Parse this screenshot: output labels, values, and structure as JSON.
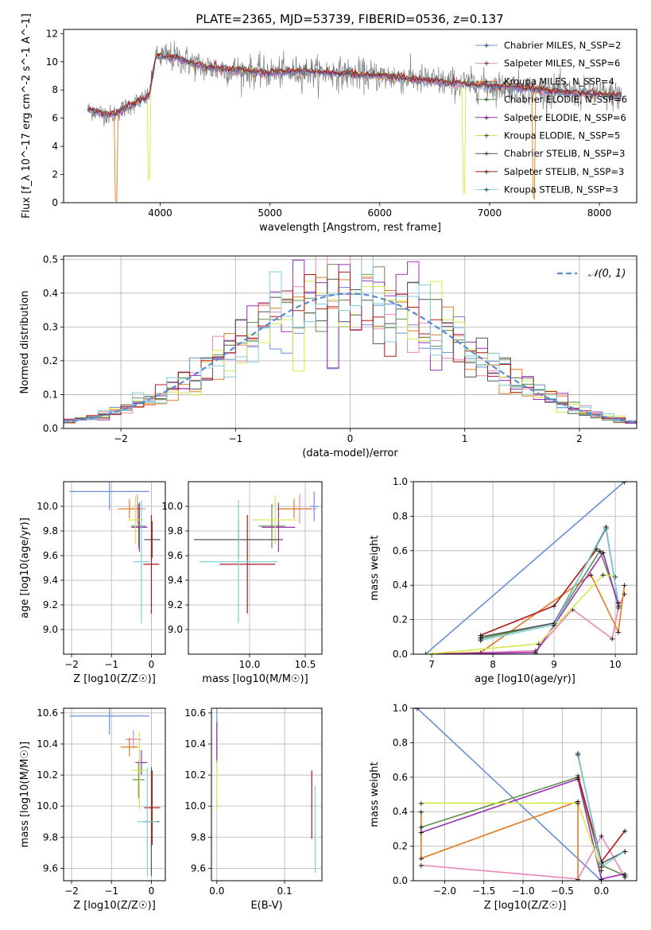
{
  "figure": {
    "title": "PLATE=2365, MJD=53739, FIBERID=0536, z=0.137"
  },
  "series": [
    {
      "name": "Chabrier MILES, N_SSP=2",
      "color": "#6a8fd8"
    },
    {
      "name": "Salpeter MILES, N_SSP=6",
      "color": "#e887b8"
    },
    {
      "name": "Kroupa MILES, N_SSP=4",
      "color": "#e07b20"
    },
    {
      "name": "Chabrier ELODIE, N_SSP=6",
      "color": "#5f8f4a"
    },
    {
      "name": "Salpeter ELODIE, N_SSP=6",
      "color": "#9b30b5"
    },
    {
      "name": "Kroupa ELODIE, N_SSP=5",
      "color": "#d4e84a"
    },
    {
      "name": "Chabrier STELIB, N_SSP=3",
      "color": "#555555"
    },
    {
      "name": "Salpeter STELIB, N_SSP=3",
      "color": "#b01818"
    },
    {
      "name": "Kroupa STELIB, N_SSP=3",
      "color": "#7fd0dc"
    }
  ],
  "chart_data": [
    {
      "id": "spectrum",
      "type": "line",
      "xlabel": "wavelength [Angstrom, rest frame]",
      "ylabel": "Flux [f_λ 10^-17 erg cm^-2 s^-1 A^-1]",
      "xlim": [
        3120,
        8340
      ],
      "ylim": [
        0,
        12.3
      ],
      "xticks": [
        4000,
        5000,
        6000,
        7000,
        8000
      ],
      "yticks": [
        0,
        2,
        4,
        6,
        8,
        10,
        12
      ],
      "grid": false,
      "legend": "top-right",
      "continuum": [
        [
          3340,
          6.6
        ],
        [
          3550,
          6.2
        ],
        [
          3700,
          6.8
        ],
        [
          3900,
          7.6
        ],
        [
          3960,
          10.4
        ],
        [
          4150,
          10.3
        ],
        [
          4400,
          9.6
        ],
        [
          4700,
          9.4
        ],
        [
          5000,
          9.2
        ],
        [
          5300,
          9.3
        ],
        [
          5600,
          9.2
        ],
        [
          6000,
          9.0
        ],
        [
          6400,
          8.7
        ],
        [
          6800,
          8.4
        ],
        [
          7200,
          8.2
        ],
        [
          7600,
          7.9
        ],
        [
          8000,
          7.7
        ],
        [
          8200,
          7.6
        ]
      ],
      "features": [
        {
          "series": 2,
          "x": 3600,
          "depth": 6.2
        },
        {
          "series": 5,
          "x": 3900,
          "depth": 6.0
        },
        {
          "series": 5,
          "x": 6770,
          "depth": 7.8
        },
        {
          "series": 2,
          "x": 7400,
          "depth": 7.6
        }
      ]
    },
    {
      "id": "residuals",
      "type": "histogram",
      "xlabel": "(data-model)/error",
      "ylabel": "Normed distribution",
      "xlim": [
        -2.5,
        2.5
      ],
      "ylim": [
        0,
        0.51
      ],
      "xticks": [
        -2,
        -1,
        0,
        1,
        2
      ],
      "yticks": [
        0.0,
        0.1,
        0.2,
        0.3,
        0.4,
        0.5
      ],
      "grid": true,
      "bin_width": 0.1,
      "legend": "top-right",
      "reference": {
        "name": "N(0,1)",
        "label_text": "𝒩(0, 1)",
        "mean": 0,
        "sigma": 1,
        "color": "#5b8bd6"
      }
    },
    {
      "id": "age-vs-Z",
      "type": "errorbar",
      "xlabel": "Z [log10(Z/Z☉)]",
      "ylabel": "age [log10(age/yr)]",
      "xlim": [
        -2.2,
        0.35
      ],
      "ylim": [
        8.8,
        10.2
      ],
      "xticks": [
        -2,
        -1,
        0
      ],
      "yticks": [
        9.0,
        9.2,
        9.4,
        9.6,
        9.8,
        10.0
      ],
      "grid": true,
      "points": [
        {
          "series": 0,
          "x": -1.05,
          "xerr": 1.0,
          "y": 10.12,
          "yerr": 0.15
        },
        {
          "series": 1,
          "x": -0.35,
          "xerr": 0.2,
          "y": 9.98,
          "yerr": 0.12
        },
        {
          "series": 2,
          "x": -0.55,
          "xerr": 0.28,
          "y": 9.98,
          "yerr": 0.08
        },
        {
          "series": 3,
          "x": -0.32,
          "xerr": 0.18,
          "y": 9.84,
          "yerr": 0.18
        },
        {
          "series": 4,
          "x": -0.3,
          "xerr": 0.2,
          "y": 9.83,
          "yerr": 0.2
        },
        {
          "series": 5,
          "x": -0.4,
          "xerr": 0.2,
          "y": 9.89,
          "yerr": 0.2
        },
        {
          "series": 6,
          "x": 0.02,
          "xerr": 0.2,
          "y": 9.73,
          "yerr": 0.15
        },
        {
          "series": 7,
          "x": 0.0,
          "xerr": 0.2,
          "y": 9.53,
          "yerr": 0.4
        },
        {
          "series": 8,
          "x": -0.25,
          "xerr": 0.2,
          "y": 9.55,
          "yerr": 0.5
        }
      ]
    },
    {
      "id": "age-vs-mass",
      "type": "errorbar",
      "xlabel": "mass [log10(M/M☉)]",
      "ylabel": "",
      "xlim": [
        9.45,
        10.65
      ],
      "ylim": [
        8.8,
        10.2
      ],
      "xticks": [
        10.0,
        10.5
      ],
      "yticks": [
        9.0,
        9.2,
        9.4,
        9.6,
        9.8,
        10.0
      ],
      "grid": true,
      "points": [
        {
          "series": 0,
          "x": 10.58,
          "xerr": 0.04,
          "y": 10.0,
          "yerr": 0.12
        },
        {
          "series": 1,
          "x": 10.45,
          "xerr": 0.15,
          "y": 9.98,
          "yerr": 0.12
        },
        {
          "series": 2,
          "x": 10.4,
          "xerr": 0.15,
          "y": 9.98,
          "yerr": 0.08
        },
        {
          "series": 3,
          "x": 10.2,
          "xerr": 0.12,
          "y": 9.84,
          "yerr": 0.18
        },
        {
          "series": 4,
          "x": 10.26,
          "xerr": 0.15,
          "y": 9.83,
          "yerr": 0.2
        },
        {
          "series": 5,
          "x": 10.23,
          "xerr": 0.2,
          "y": 9.89,
          "yerr": 0.2
        },
        {
          "series": 6,
          "x": 9.9,
          "xerr": 0.4,
          "y": 9.73,
          "yerr": 0.15
        },
        {
          "series": 7,
          "x": 9.98,
          "xerr": 0.25,
          "y": 9.53,
          "yerr": 0.4
        },
        {
          "series": 8,
          "x": 9.9,
          "xerr": 0.35,
          "y": 9.55,
          "yerr": 0.5
        }
      ]
    },
    {
      "id": "weight-vs-age",
      "type": "line",
      "xlabel": "age [log10(age/yr)]",
      "ylabel": "mass weight",
      "xlim": [
        6.7,
        10.35
      ],
      "ylim": [
        0,
        1.0
      ],
      "xticks": [
        7,
        8,
        9,
        10
      ],
      "yticks": [
        0.0,
        0.2,
        0.4,
        0.6,
        0.8,
        1.0
      ],
      "grid": true,
      "lines": [
        {
          "series": 0,
          "points": [
            [
              6.9,
              0.0
            ],
            [
              10.15,
              1.0
            ]
          ]
        },
        {
          "series": 1,
          "points": [
            [
              6.9,
              0.0
            ],
            [
              8.7,
              0.02
            ],
            [
              9.3,
              0.26
            ],
            [
              9.95,
              0.09
            ],
            [
              10.05,
              0.27
            ],
            [
              10.15,
              0.35
            ]
          ]
        },
        {
          "series": 2,
          "points": [
            [
              6.9,
              0.0
            ],
            [
              7.8,
              0.01
            ],
            [
              9.6,
              0.46
            ],
            [
              10.05,
              0.13
            ],
            [
              10.15,
              0.4
            ]
          ]
        },
        {
          "series": 3,
          "points": [
            [
              7.8,
              0.09
            ],
            [
              9.0,
              0.18
            ],
            [
              9.75,
              0.6
            ],
            [
              10.05,
              0.3
            ]
          ]
        },
        {
          "series": 4,
          "points": [
            [
              6.9,
              0.0
            ],
            [
              8.7,
              0.01
            ],
            [
              9.8,
              0.59
            ],
            [
              10.05,
              0.28
            ]
          ]
        },
        {
          "series": 5,
          "points": [
            [
              6.9,
              0.0
            ],
            [
              8.75,
              0.06
            ],
            [
              9.8,
              0.46
            ],
            [
              10.0,
              0.45
            ]
          ]
        },
        {
          "series": 6,
          "points": [
            [
              7.8,
              0.1
            ],
            [
              9.0,
              0.18
            ],
            [
              9.85,
              0.73
            ],
            [
              10.05,
              0.3
            ]
          ]
        },
        {
          "series": 7,
          "points": [
            [
              7.8,
              0.11
            ],
            [
              9.0,
              0.28
            ],
            [
              9.7,
              0.61
            ]
          ]
        },
        {
          "series": 8,
          "points": [
            [
              7.8,
              0.08
            ],
            [
              9.0,
              0.17
            ],
            [
              9.85,
              0.74
            ],
            [
              10.05,
              0.3
            ]
          ]
        }
      ]
    },
    {
      "id": "mass-vs-Z",
      "type": "errorbar",
      "xlabel": "Z [log10(Z/Z☉)]",
      "ylabel": "mass [log10(M/M☉)]",
      "xlim": [
        -2.2,
        0.35
      ],
      "ylim": [
        9.52,
        10.63
      ],
      "xticks": [
        -2,
        -1,
        0
      ],
      "yticks": [
        9.6,
        9.8,
        10.0,
        10.2,
        10.4,
        10.6
      ],
      "grid": true,
      "points": [
        {
          "series": 0,
          "x": -1.05,
          "xerr": 1.0,
          "y": 10.58,
          "yerr": 0.12
        },
        {
          "series": 1,
          "x": -0.45,
          "xerr": 0.2,
          "y": 10.43,
          "yerr": 0.06
        },
        {
          "series": 2,
          "x": -0.55,
          "xerr": 0.22,
          "y": 10.38,
          "yerr": 0.06
        },
        {
          "series": 3,
          "x": -0.32,
          "xerr": 0.15,
          "y": 10.17,
          "yerr": 0.12
        },
        {
          "series": 4,
          "x": -0.25,
          "xerr": 0.15,
          "y": 10.28,
          "yerr": 0.08
        },
        {
          "series": 5,
          "x": -0.3,
          "xerr": 0.2,
          "y": 10.23,
          "yerr": 0.25
        },
        {
          "series": 6,
          "x": 0.0,
          "xerr": 0.2,
          "y": 9.9,
          "yerr": 0.35
        },
        {
          "series": 7,
          "x": 0.02,
          "xerr": 0.2,
          "y": 9.99,
          "yerr": 0.24
        },
        {
          "series": 8,
          "x": -0.1,
          "xerr": 0.25,
          "y": 9.9,
          "yerr": 0.35
        }
      ]
    },
    {
      "id": "mass-vs-EBV",
      "type": "errorbar",
      "xlabel": "E(B-V)",
      "ylabel": "",
      "xlim": [
        -0.008,
        0.155
      ],
      "ylim": [
        9.52,
        10.63
      ],
      "xticks": [
        0.0,
        0.1
      ],
      "yticks": [
        9.6,
        9.8,
        10.0,
        10.2,
        10.4,
        10.6
      ],
      "grid": true,
      "points": [
        {
          "series": 0,
          "x": 0.0,
          "xerr": 0.0,
          "y": 10.58,
          "yerr": 0.12
        },
        {
          "series": 1,
          "x": 0.0,
          "xerr": 0.0,
          "y": 10.43,
          "yerr": 0.08
        },
        {
          "series": 2,
          "x": 0.0,
          "xerr": 0.0,
          "y": 10.38,
          "yerr": 0.1
        },
        {
          "series": 4,
          "x": 0.0,
          "xerr": 0.0,
          "y": 10.42,
          "yerr": 0.12
        },
        {
          "series": 5,
          "x": 0.0,
          "xerr": 0.0,
          "y": 10.12,
          "yerr": 0.15
        },
        {
          "series": 7,
          "x": 0.14,
          "xerr": 0.0,
          "y": 10.01,
          "yerr": 0.22
        },
        {
          "series": 8,
          "x": 0.145,
          "xerr": 0.0,
          "y": 9.85,
          "yerr": 0.28
        }
      ]
    },
    {
      "id": "weight-vs-Z",
      "type": "line",
      "xlabel": "Z [log10(Z/Z☉)]",
      "ylabel": "mass weight",
      "xlim": [
        -2.4,
        0.45
      ],
      "ylim": [
        0,
        1.0
      ],
      "xticks": [
        -2.0,
        -1.5,
        -1.0,
        -0.5,
        0.0
      ],
      "yticks": [
        0.0,
        0.2,
        0.4,
        0.6,
        0.8,
        1.0
      ],
      "grid": true,
      "lines": [
        {
          "series": 0,
          "points": [
            [
              -2.35,
              1.0
            ],
            [
              0.0,
              0.0
            ]
          ]
        },
        {
          "series": 1,
          "points": [
            [
              -2.3,
              0.09
            ],
            [
              -0.3,
              0.01
            ],
            [
              0.0,
              0.26
            ],
            [
              0.3,
              0.02
            ]
          ]
        },
        {
          "series": 2,
          "points": [
            [
              -2.3,
              0.4
            ],
            [
              -2.3,
              0.13
            ],
            [
              -0.3,
              0.46
            ],
            [
              -0.3,
              0.0
            ]
          ]
        },
        {
          "series": 3,
          "points": [
            [
              -2.3,
              0.31
            ],
            [
              -0.3,
              0.6
            ],
            [
              0.0,
              0.09
            ],
            [
              0.3,
              0.03
            ]
          ]
        },
        {
          "series": 4,
          "points": [
            [
              -2.3,
              0.28
            ],
            [
              -0.3,
              0.59
            ],
            [
              0.0,
              0.01
            ],
            [
              0.3,
              0.04
            ]
          ]
        },
        {
          "series": 5,
          "points": [
            [
              -2.3,
              0.45
            ],
            [
              -0.3,
              0.45
            ],
            [
              0.0,
              0.06
            ]
          ]
        },
        {
          "series": 6,
          "points": [
            [
              -0.3,
              0.73
            ],
            [
              0.0,
              0.1
            ],
            [
              0.3,
              0.17
            ]
          ]
        },
        {
          "series": 7,
          "points": [
            [
              -0.3,
              0.61
            ],
            [
              0.0,
              0.11
            ],
            [
              0.3,
              0.29
            ]
          ]
        },
        {
          "series": 8,
          "points": [
            [
              -0.3,
              0.74
            ],
            [
              0.0,
              0.08
            ],
            [
              0.3,
              0.17
            ]
          ]
        }
      ]
    }
  ]
}
